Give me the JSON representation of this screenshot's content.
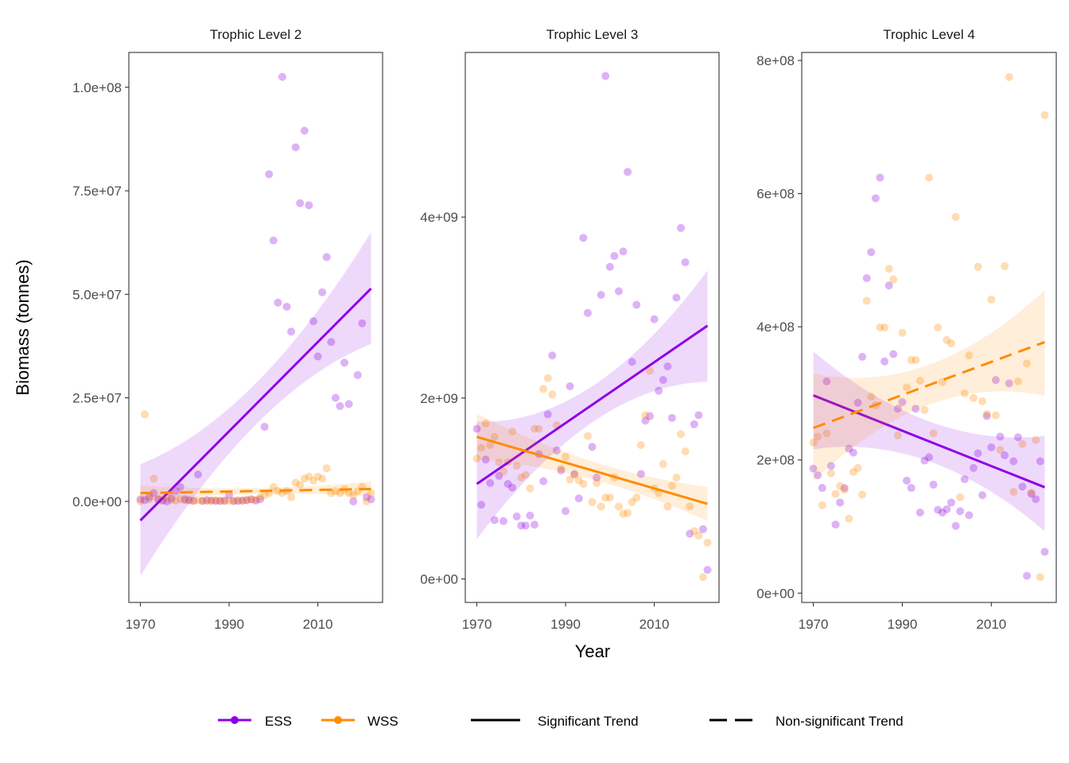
{
  "axis_titles": {
    "x": "Year",
    "y": "Biomass (tonnes)"
  },
  "colors": {
    "ESS": "#8f00e6",
    "WSS": "#ff8c00"
  },
  "legend": {
    "series": [
      {
        "name": "ESS",
        "color": "#8f00e6"
      },
      {
        "name": "WSS",
        "color": "#ff8c00"
      }
    ],
    "linetypes": [
      {
        "name": "Significant Trend",
        "style": "solid"
      },
      {
        "name": "Non-significant Trend",
        "style": "dashed"
      }
    ],
    "placement": "bottom"
  },
  "chart_data": [
    {
      "type": "scatter",
      "title": "Trophic Level 2",
      "x_range": [
        1967.4,
        2024.6
      ],
      "y_range": [
        -24400000.0,
        108400000.0
      ],
      "x_ticks": [
        1970,
        1990,
        2010
      ],
      "x_tick_labels": [
        "1970",
        "1990",
        "2010"
      ],
      "y_ticks": [
        0,
        25000000.0,
        50000000.0,
        75000000.0,
        100000000.0
      ],
      "y_tick_labels": [
        "0.0e+00",
        "2.5e+07",
        "5.0e+07",
        "7.5e+07",
        "1.0e+08"
      ],
      "grid": false,
      "x": [
        1970,
        1971,
        1972,
        1973,
        1974,
        1975,
        1976,
        1977,
        1978,
        1979,
        1980,
        1981,
        1982,
        1983,
        1984,
        1985,
        1986,
        1987,
        1988,
        1989,
        1990,
        1991,
        1992,
        1993,
        1994,
        1995,
        1996,
        1997,
        1998,
        1999,
        2000,
        2001,
        2002,
        2003,
        2004,
        2005,
        2006,
        2007,
        2008,
        2009,
        2010,
        2011,
        2012,
        2013,
        2014,
        2015,
        2016,
        2017,
        2018,
        2019,
        2020,
        2021,
        2022
      ],
      "series": [
        {
          "name": "ESS",
          "values": [
            500000.0,
            300000.0,
            1000000.0,
            2000000.0,
            500000.0,
            200000.0,
            0,
            800000.0,
            2500000.0,
            3500000.0,
            500000.0,
            300000.0,
            200000.0,
            6500000.0,
            100000.0,
            300000.0,
            200000.0,
            100000.0,
            100000.0,
            200000.0,
            1500000.0,
            100000.0,
            100000.0,
            200000.0,
            300000.0,
            500000.0,
            200000.0,
            500000.0,
            18000000.0,
            79000000.0,
            63000000.0,
            48000000.0,
            102500000.0,
            47000000.0,
            41000000.0,
            85500000.0,
            72000000.0,
            89500000.0,
            71500000.0,
            43500000.0,
            35000000.0,
            50500000.0,
            59000000.0,
            38500000.0,
            25000000.0,
            23000000.0,
            33500000.0,
            23500000.0,
            0,
            30500000.0,
            43000000.0,
            1000000.0,
            500000.0
          ],
          "trend": {
            "significant": true,
            "x": [
              1970,
              1996,
              2022
            ],
            "fit": [
              -4600000.0,
              23400000.0,
              51400000.0
            ],
            "lower": [
              -18000000.0,
              18500000.0,
              38000000.0
            ],
            "upper": [
              9000000.0,
              28500000.0,
              65000000.0
            ]
          }
        },
        {
          "name": "WSS",
          "values": [
            0,
            21000000.0,
            500000.0,
            5500000.0,
            500000.0,
            300000.0,
            1000000.0,
            300000.0,
            200000.0,
            500000.0,
            300000.0,
            200000.0,
            100000.0,
            300000.0,
            200000.0,
            100000.0,
            200000.0,
            300000.0,
            200000.0,
            100000.0,
            200000.0,
            100000.0,
            300000.0,
            200000.0,
            300000.0,
            500000.0,
            400000.0,
            1000000.0,
            1500000.0,
            2000000.0,
            3500000.0,
            2500000.0,
            2000000.0,
            2500000.0,
            1000000.0,
            4500000.0,
            4000000.0,
            5500000.0,
            6000000.0,
            5000000.0,
            6000000.0,
            5500000.0,
            8000000.0,
            2000000.0,
            2500000.0,
            2000000.0,
            3000000.0,
            2000000.0,
            1500000.0,
            2500000.0,
            3500000.0,
            0,
            2000000.0
          ],
          "trend": {
            "significant": false,
            "x": [
              1970,
              1996,
              2022
            ],
            "fit": [
              2000000.0,
              2500000.0,
              3000000.0
            ],
            "lower": [
              200000.0,
              1800000.0,
              1200000.0
            ],
            "upper": [
              3800000.0,
              3200000.0,
              4800000.0
            ]
          }
        }
      ]
    },
    {
      "type": "scatter",
      "title": "Trophic Level 3",
      "x_range": [
        1967.4,
        2024.6
      ],
      "y_range": [
        -260000000.0,
        5820000000.0
      ],
      "x_ticks": [
        1970,
        1990,
        2010
      ],
      "x_tick_labels": [
        "1970",
        "1990",
        "2010"
      ],
      "y_ticks": [
        0,
        2000000000.0,
        4000000000.0
      ],
      "y_tick_labels": [
        "0e+00",
        "2e+09",
        "4e+09"
      ],
      "grid": false,
      "x": [
        1970,
        1971,
        1972,
        1973,
        1974,
        1975,
        1976,
        1977,
        1978,
        1979,
        1980,
        1981,
        1982,
        1983,
        1984,
        1985,
        1986,
        1987,
        1988,
        1989,
        1990,
        1991,
        1992,
        1993,
        1994,
        1995,
        1996,
        1997,
        1998,
        1999,
        2000,
        2001,
        2002,
        2003,
        2004,
        2005,
        2006,
        2007,
        2008,
        2009,
        2010,
        2011,
        2012,
        2013,
        2014,
        2015,
        2016,
        2017,
        2018,
        2019,
        2020,
        2021,
        2022
      ],
      "series": [
        {
          "name": "ESS",
          "values": [
            1660000000.0,
            820000000.0,
            1320000000.0,
            1060000000.0,
            650000000.0,
            1140000000.0,
            640000000.0,
            1050000000.0,
            1010000000.0,
            690000000.0,
            590000000.0,
            590000000.0,
            700000000.0,
            600000000.0,
            1380000000.0,
            1080000000.0,
            1820000000.0,
            2470000000.0,
            1420000000.0,
            1200000000.0,
            750000000.0,
            2130000000.0,
            1160000000.0,
            890000000.0,
            3770000000.0,
            2940000000.0,
            1460000000.0,
            1120000000.0,
            3140000000.0,
            5560000000.0,
            3450000000.0,
            3570000000.0,
            3180000000.0,
            3620000000.0,
            4500000000.0,
            2400000000.0,
            3030000000.0,
            1160000000.0,
            1750000000.0,
            1800000000.0,
            2870000000.0,
            2080000000.0,
            2200000000.0,
            2350000000.0,
            1780000000.0,
            3110000000.0,
            3880000000.0,
            3500000000.0,
            500000000.0,
            1710000000.0,
            1810000000.0,
            550000000.0,
            100000000.0
          ],
          "trend": {
            "significant": true,
            "x": [
              1970,
              1996,
              2022
            ],
            "fit": [
              1050000000.0,
              1930000000.0,
              2800000000.0
            ],
            "lower": [
              440000000.0,
              1730000000.0,
              2180000000.0
            ],
            "upper": [
              1740000000.0,
              2130000000.0,
              3410000000.0
            ]
          }
        },
        {
          "name": "WSS",
          "values": [
            1330000000.0,
            1450000000.0,
            1720000000.0,
            1480000000.0,
            1570000000.0,
            1290000000.0,
            1190000000.0,
            1290000000.0,
            1630000000.0,
            1250000000.0,
            1120000000.0,
            1150000000.0,
            1000000000.0,
            1660000000.0,
            1660000000.0,
            2100000000.0,
            2220000000.0,
            2040000000.0,
            1700000000.0,
            1220000000.0,
            1350000000.0,
            1100000000.0,
            1150000000.0,
            1090000000.0,
            1050000000.0,
            1580000000.0,
            850000000.0,
            1060000000.0,
            800000000.0,
            900000000.0,
            900000000.0,
            1120000000.0,
            800000000.0,
            720000000.0,
            730000000.0,
            850000000.0,
            900000000.0,
            1480000000.0,
            1810000000.0,
            2300000000.0,
            1000000000.0,
            950000000.0,
            1270000000.0,
            800000000.0,
            1030000000.0,
            1120000000.0,
            1600000000.0,
            1410000000.0,
            800000000.0,
            530000000.0,
            480000000.0,
            20000000.0,
            400000000.0
          ],
          "trend": {
            "significant": true,
            "x": [
              1970,
              1996,
              2022
            ],
            "fit": [
              1570000000.0,
              1200000000.0,
              830000000.0
            ],
            "lower": [
              1320000000.0,
              1100000000.0,
              640000000.0
            ],
            "upper": [
              1830000000.0,
              1300000000.0,
              1020000000.0
            ]
          }
        }
      ]
    },
    {
      "type": "scatter",
      "title": "Trophic Level 4",
      "x_range": [
        1967.4,
        2024.6
      ],
      "y_range": [
        -14000000.0,
        812000000.0
      ],
      "x_ticks": [
        1970,
        1990,
        2010
      ],
      "x_tick_labels": [
        "1970",
        "1990",
        "2010"
      ],
      "y_ticks": [
        0,
        200000000.0,
        400000000.0,
        600000000.0,
        800000000.0
      ],
      "y_tick_labels": [
        "0e+00",
        "2e+08",
        "4e+08",
        "6e+08",
        "8e+08"
      ],
      "grid": false,
      "x": [
        1970,
        1971,
        1972,
        1973,
        1974,
        1975,
        1976,
        1977,
        1978,
        1979,
        1980,
        1981,
        1982,
        1983,
        1984,
        1985,
        1986,
        1987,
        1988,
        1989,
        1990,
        1991,
        1992,
        1993,
        1994,
        1995,
        1996,
        1997,
        1998,
        1999,
        2000,
        2001,
        2002,
        2003,
        2004,
        2005,
        2006,
        2007,
        2008,
        2009,
        2010,
        2011,
        2012,
        2013,
        2014,
        2015,
        2016,
        2017,
        2018,
        2019,
        2020,
        2021,
        2022
      ],
      "series": [
        {
          "name": "ESS",
          "values": [
            187000000.0,
            177000000.0,
            158000000.0,
            318000000.0,
            191000000.0,
            103000000.0,
            136000000.0,
            158000000.0,
            217000000.0,
            211000000.0,
            286000000.0,
            355000000.0,
            473000000.0,
            512000000.0,
            593000000.0,
            624000000.0,
            348000000.0,
            462000000.0,
            359000000.0,
            277000000.0,
            287000000.0,
            169000000.0,
            158000000.0,
            277000000.0,
            121000000.0,
            199000000.0,
            204000000.0,
            163000000.0,
            125000000.0,
            121000000.0,
            126000000.0,
            136000000.0,
            101000000.0,
            123000000.0,
            171000000.0,
            117000000.0,
            188000000.0,
            210000000.0,
            147000000.0,
            266000000.0,
            219000000.0,
            320000000.0,
            235000000.0,
            207000000.0,
            315000000.0,
            198000000.0,
            234000000.0,
            160000000.0,
            26000000.0,
            149000000.0,
            141000000.0,
            198000000.0,
            62000000.0
          ],
          "trend": {
            "significant": true,
            "x": [
              1970,
              1996,
              2022
            ],
            "fit": [
              297000000.0,
              228000000.0,
              159000000.0
            ],
            "lower": [
              216000000.0,
              198000000.0,
              93000000.0
            ],
            "upper": [
              363000000.0,
              258000000.0,
              236000000.0
            ]
          }
        },
        {
          "name": "WSS",
          "values": [
            226000000.0,
            235000000.0,
            132000000.0,
            240000000.0,
            180000000.0,
            149000000.0,
            161000000.0,
            155000000.0,
            112000000.0,
            182000000.0,
            188000000.0,
            148000000.0,
            439000000.0,
            295000000.0,
            282000000.0,
            399000000.0,
            399000000.0,
            487000000.0,
            471000000.0,
            237000000.0,
            391000000.0,
            309000000.0,
            350000000.0,
            350000000.0,
            319000000.0,
            275000000.0,
            624000000.0,
            240000000.0,
            399000000.0,
            317000000.0,
            380000000.0,
            375000000.0,
            565000000.0,
            144000000.0,
            300000000.0,
            357000000.0,
            293000000.0,
            490000000.0,
            288000000.0,
            269000000.0,
            441000000.0,
            267000000.0,
            215000000.0,
            491000000.0,
            775000000.0,
            152000000.0,
            318000000.0,
            224000000.0,
            345000000.0,
            151000000.0,
            230000000.0,
            24000000.0,
            718000000.0
          ],
          "trend": {
            "significant": false,
            "x": [
              1970,
              1996,
              2022
            ],
            "fit": [
              248000000.0,
              313000000.0,
              377000000.0
            ],
            "lower": [
              168000000.0,
              283000000.0,
              296000000.0
            ],
            "upper": [
              330000000.0,
              343000000.0,
              455000000.0
            ]
          }
        }
      ]
    }
  ]
}
